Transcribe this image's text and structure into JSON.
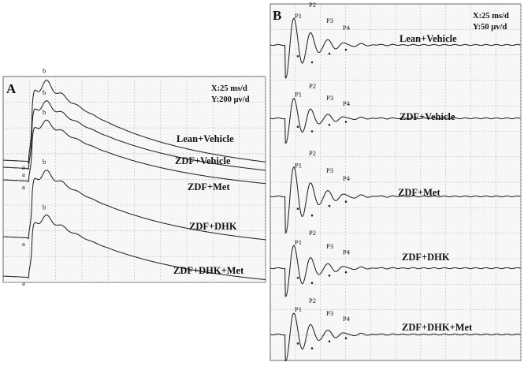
{
  "chart_data": [
    {
      "type": "line",
      "panel": "A",
      "scale_x": "X:25 ms/d",
      "scale_y": "Y:200 µv/d",
      "series": [
        {
          "name": "Lean+Vehicle",
          "markers": [
            "a",
            "b"
          ]
        },
        {
          "name": "ZDF+Vehicle",
          "markers": [
            "a",
            "b"
          ]
        },
        {
          "name": "ZDF+Met",
          "markers": [
            "a",
            "b"
          ]
        },
        {
          "name": "ZDF+DHK",
          "markers": [
            "a",
            "b"
          ]
        },
        {
          "name": "ZDF+DHK+Met",
          "markers": [
            "a",
            "b"
          ]
        }
      ]
    },
    {
      "type": "line",
      "panel": "B",
      "scale_x": "X:25 ms/d",
      "scale_y": "Y:50 µv/d",
      "series": [
        {
          "name": "Lean+Vehicle",
          "peaks": [
            "P1",
            "P2",
            "P3",
            "P4"
          ]
        },
        {
          "name": "ZDF+Vehicle",
          "peaks": [
            "P1",
            "P2",
            "P3",
            "P4"
          ]
        },
        {
          "name": "ZDF+Met",
          "peaks": [
            "P1",
            "P2",
            "P3",
            "P4"
          ]
        },
        {
          "name": "ZDF+DHK",
          "peaks": [
            "P1",
            "P2",
            "P3",
            "P4"
          ]
        },
        {
          "name": "ZDF+DHK+Met",
          "peaks": [
            "P1",
            "P2",
            "P3",
            "P4"
          ]
        }
      ]
    }
  ]
}
